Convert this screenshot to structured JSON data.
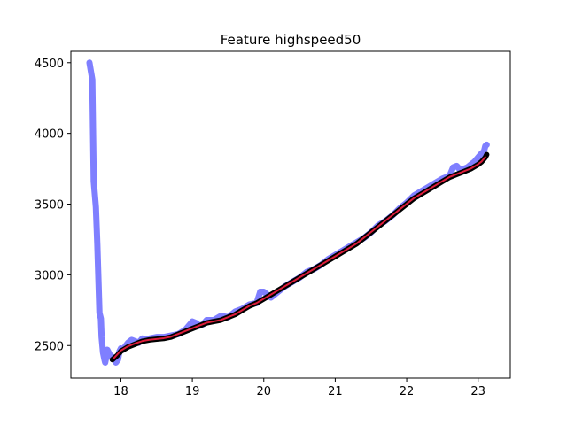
{
  "chart_data": {
    "type": "line",
    "title": "Feature highspeed50",
    "xlabel": "",
    "ylabel": "",
    "xlim": [
      17.3,
      23.45
    ],
    "ylim": [
      2270,
      4580
    ],
    "xticks": [
      18,
      19,
      20,
      21,
      22,
      23
    ],
    "yticks": [
      2500,
      3000,
      3500,
      4000,
      4500
    ],
    "grid": false,
    "legend": "none",
    "series": [
      {
        "color": "#7f7fff",
        "style": "thick-translucent",
        "x": [
          17.56,
          17.6,
          17.62,
          17.65,
          17.67,
          17.7,
          17.72,
          17.73,
          17.75,
          17.77,
          17.78,
          17.8,
          17.81,
          17.83,
          17.85,
          17.88,
          17.9,
          17.93,
          17.96,
          17.98,
          18.0,
          18.03,
          18.07,
          18.1,
          18.15,
          18.2,
          18.25,
          18.3,
          18.35,
          18.4,
          18.5,
          18.6,
          18.7,
          18.8,
          18.9,
          18.95,
          19.0,
          19.05,
          19.1,
          19.15,
          19.2,
          19.3,
          19.4,
          19.5,
          19.6,
          19.7,
          19.8,
          19.9,
          19.95,
          20.0,
          20.1,
          20.2,
          20.3,
          20.4,
          20.5,
          20.6,
          20.7,
          20.8,
          20.9,
          21.0,
          21.1,
          21.2,
          21.3,
          21.4,
          21.5,
          21.6,
          21.7,
          21.8,
          21.9,
          22.0,
          22.1,
          22.2,
          22.3,
          22.4,
          22.5,
          22.6,
          22.65,
          22.7,
          22.75,
          22.8,
          22.85,
          22.9,
          22.95,
          23.0,
          23.05,
          23.08,
          23.1,
          23.12
        ],
        "y": [
          4500,
          4380,
          3660,
          3480,
          3220,
          2730,
          2690,
          2560,
          2450,
          2400,
          2380,
          2430,
          2470,
          2450,
          2430,
          2420,
          2410,
          2380,
          2400,
          2460,
          2480,
          2470,
          2500,
          2520,
          2540,
          2530,
          2520,
          2550,
          2540,
          2550,
          2560,
          2560,
          2570,
          2580,
          2610,
          2640,
          2670,
          2660,
          2640,
          2650,
          2680,
          2680,
          2710,
          2700,
          2740,
          2760,
          2790,
          2800,
          2880,
          2880,
          2840,
          2880,
          2920,
          2950,
          2980,
          3020,
          3040,
          3070,
          3110,
          3140,
          3170,
          3200,
          3230,
          3260,
          3300,
          3350,
          3380,
          3420,
          3470,
          3510,
          3560,
          3590,
          3620,
          3650,
          3680,
          3700,
          3760,
          3770,
          3740,
          3750,
          3760,
          3780,
          3800,
          3830,
          3860,
          3870,
          3910,
          3920
        ]
      },
      {
        "color": "#000000",
        "style": "thick",
        "x": [
          17.88,
          17.95,
          18.0,
          18.1,
          18.2,
          18.3,
          18.4,
          18.5,
          18.6,
          18.7,
          18.8,
          18.9,
          19.0,
          19.1,
          19.2,
          19.3,
          19.4,
          19.5,
          19.6,
          19.7,
          19.8,
          19.9,
          20.0,
          20.1,
          20.2,
          20.3,
          20.4,
          20.5,
          20.6,
          20.7,
          20.8,
          20.9,
          21.0,
          21.1,
          21.2,
          21.3,
          21.4,
          21.5,
          21.6,
          21.7,
          21.8,
          21.9,
          22.0,
          22.1,
          22.2,
          22.3,
          22.4,
          22.5,
          22.6,
          22.7,
          22.8,
          22.9,
          23.0,
          23.05,
          23.1,
          23.12
        ],
        "y": [
          2400,
          2430,
          2460,
          2490,
          2510,
          2530,
          2540,
          2545,
          2550,
          2560,
          2580,
          2600,
          2620,
          2640,
          2660,
          2670,
          2680,
          2700,
          2720,
          2750,
          2780,
          2800,
          2830,
          2860,
          2890,
          2920,
          2950,
          2980,
          3010,
          3040,
          3070,
          3100,
          3130,
          3160,
          3190,
          3220,
          3260,
          3300,
          3340,
          3380,
          3420,
          3460,
          3500,
          3540,
          3570,
          3600,
          3630,
          3660,
          3690,
          3710,
          3730,
          3750,
          3780,
          3800,
          3830,
          3850
        ]
      },
      {
        "color": "#dd1c3a",
        "style": "thin",
        "x": [
          17.9,
          18.0,
          18.1,
          18.2,
          18.3,
          18.4,
          18.5,
          18.6,
          18.7,
          18.8,
          18.9,
          19.0,
          19.1,
          19.2,
          19.3,
          19.4,
          19.5,
          19.6,
          19.7,
          19.8,
          19.9,
          20.0,
          20.1,
          20.2,
          20.3,
          20.4,
          20.5,
          20.6,
          20.7,
          20.8,
          20.9,
          21.0,
          21.1,
          21.2,
          21.3,
          21.4,
          21.5,
          21.6,
          21.7,
          21.8,
          21.9,
          22.0,
          22.1,
          22.2,
          22.3,
          22.4,
          22.5,
          22.6,
          22.7,
          22.8,
          22.9,
          23.0,
          23.05,
          23.1
        ],
        "y": [
          2410,
          2465,
          2495,
          2515,
          2532,
          2541,
          2546,
          2552,
          2562,
          2582,
          2602,
          2622,
          2642,
          2661,
          2671,
          2681,
          2701,
          2721,
          2751,
          2781,
          2801,
          2831,
          2861,
          2891,
          2921,
          2951,
          2981,
          3011,
          3041,
          3071,
          3101,
          3131,
          3161,
          3191,
          3222,
          3262,
          3302,
          3342,
          3382,
          3422,
          3462,
          3502,
          3542,
          3572,
          3602,
          3632,
          3662,
          3692,
          3712,
          3732,
          3752,
          3782,
          3802,
          3832
        ]
      }
    ]
  }
}
